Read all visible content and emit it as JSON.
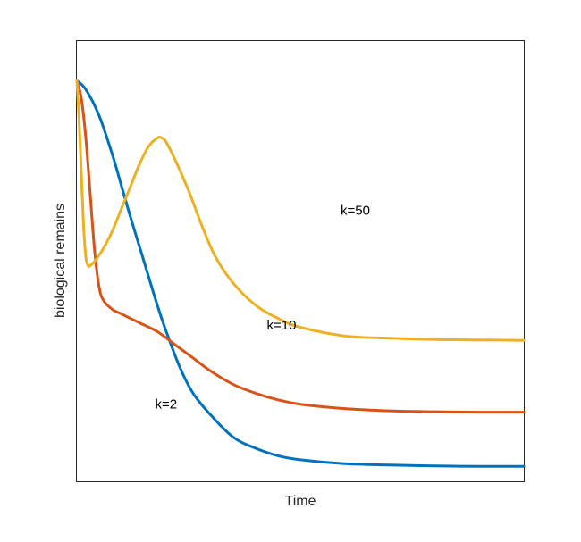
{
  "chart_data": {
    "type": "line",
    "title": "",
    "xlabel": "Time",
    "ylabel": "biological remains",
    "x_ticks": "none",
    "y_ticks": "none",
    "grid": false,
    "legend": "none",
    "xlim": [
      0,
      1
    ],
    "ylim": [
      0,
      1
    ],
    "series": [
      {
        "color": "#0072BD",
        "x": [
          0,
          0.02,
          0.05,
          0.08,
          0.1,
          0.12,
          0.15,
          0.18,
          0.2,
          0.23,
          0.26,
          0.3,
          0.35,
          0.4,
          0.45,
          0.5,
          0.6,
          0.7,
          0.8,
          0.9,
          1.0
        ],
        "y": [
          0.91,
          0.89,
          0.83,
          0.74,
          0.67,
          0.6,
          0.5,
          0.4,
          0.34,
          0.26,
          0.2,
          0.15,
          0.1,
          0.075,
          0.058,
          0.049,
          0.04,
          0.037,
          0.035,
          0.034,
          0.034
        ]
      },
      {
        "color": "#D95319",
        "x": [
          0,
          0.01,
          0.02,
          0.03,
          0.04,
          0.05,
          0.06,
          0.08,
          0.1,
          0.14,
          0.18,
          0.22,
          0.26,
          0.3,
          0.35,
          0.4,
          0.45,
          0.5,
          0.6,
          0.7,
          0.8,
          0.9,
          1.0
        ],
        "y": [
          0.91,
          0.87,
          0.78,
          0.65,
          0.52,
          0.44,
          0.41,
          0.39,
          0.38,
          0.36,
          0.34,
          0.31,
          0.28,
          0.25,
          0.22,
          0.2,
          0.185,
          0.175,
          0.165,
          0.16,
          0.158,
          0.157,
          0.157
        ]
      },
      {
        "color": "#EDB120",
        "x": [
          0,
          0.005,
          0.01,
          0.015,
          0.02,
          0.025,
          0.03,
          0.04,
          0.06,
          0.08,
          0.1,
          0.12,
          0.14,
          0.16,
          0.18,
          0.19,
          0.2,
          0.22,
          0.25,
          0.28,
          0.31,
          0.35,
          0.4,
          0.45,
          0.5,
          0.6,
          0.7,
          0.8,
          0.9,
          1.0
        ],
        "y": [
          0.91,
          0.82,
          0.7,
          0.58,
          0.51,
          0.49,
          0.49,
          0.5,
          0.53,
          0.57,
          0.62,
          0.67,
          0.72,
          0.76,
          0.78,
          0.78,
          0.77,
          0.73,
          0.66,
          0.58,
          0.51,
          0.45,
          0.4,
          0.37,
          0.35,
          0.33,
          0.325,
          0.322,
          0.321,
          0.32
        ]
      }
    ],
    "annotations": [
      {
        "text": "k=50",
        "x": 0.59,
        "y": 0.605
      },
      {
        "text": "k=10",
        "x": 0.425,
        "y": 0.345
      },
      {
        "text": "k=2",
        "x": 0.175,
        "y": 0.165
      }
    ]
  }
}
